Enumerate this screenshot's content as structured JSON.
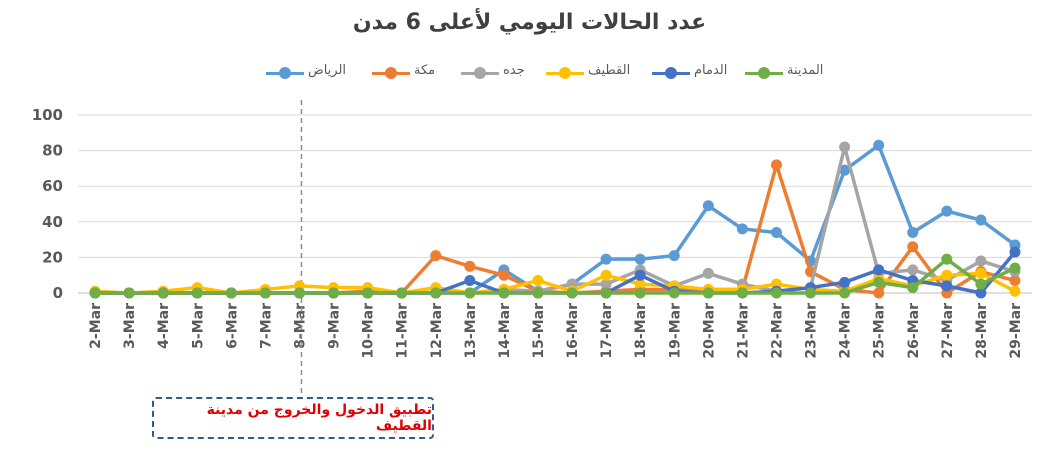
{
  "chart_data": {
    "type": "line",
    "title": "عدد الحالات اليومي لأعلى 6 مدن",
    "x": [
      "2-Mar",
      "3-Mar",
      "4-Mar",
      "5-Mar",
      "6-Mar",
      "7-Mar",
      "8-Mar",
      "9-Mar",
      "10-Mar",
      "11-Mar",
      "12-Mar",
      "13-Mar",
      "14-Mar",
      "15-Mar",
      "16-Mar",
      "17-Mar",
      "18-Mar",
      "19-Mar",
      "20-Mar",
      "21-Mar",
      "22-Mar",
      "23-Mar",
      "24-Mar",
      "25-Mar",
      "26-Mar",
      "27-Mar",
      "28-Mar",
      "29-Mar"
    ],
    "ylim": [
      0,
      100
    ],
    "yticks": [
      0,
      20,
      40,
      60,
      80,
      100
    ],
    "grid": true,
    "legend_position": "top",
    "series": [
      {
        "name": "الرياض",
        "color": "#5b9bd5",
        "values": [
          0,
          0,
          0,
          0,
          0,
          0,
          0,
          0,
          0,
          0,
          0,
          0,
          13,
          1,
          5,
          19,
          19,
          21,
          49,
          36,
          34,
          18,
          69,
          83,
          34,
          46,
          41,
          27
        ]
      },
      {
        "name": "مكة",
        "color": "#ed7d31",
        "values": [
          0,
          0,
          0,
          0,
          0,
          0,
          0,
          0,
          1,
          0,
          21,
          15,
          10,
          1,
          0,
          1,
          2,
          2,
          2,
          2,
          72,
          12,
          2,
          0,
          26,
          0,
          12,
          7
        ]
      },
      {
        "name": "جده",
        "color": "#a5a5a5",
        "values": [
          0,
          0,
          0,
          0,
          0,
          0,
          0,
          0,
          0,
          0,
          0,
          0,
          2,
          1,
          5,
          5,
          13,
          4,
          11,
          5,
          1,
          3,
          82,
          11,
          13,
          7,
          18,
          12
        ]
      },
      {
        "name": "القطيف",
        "color": "#ffc000",
        "values": [
          1,
          0,
          1,
          3,
          0,
          2,
          4,
          3,
          3,
          0,
          3,
          0,
          2,
          7,
          1,
          10,
          5,
          4,
          2,
          2,
          5,
          2,
          1,
          8,
          4,
          10,
          11,
          1
        ]
      },
      {
        "name": "الدمام",
        "color": "#4472c4",
        "values": [
          0,
          0,
          0,
          0,
          0,
          0,
          0,
          0,
          0,
          0,
          0,
          7,
          0,
          0,
          0,
          0,
          10,
          1,
          0,
          0,
          1,
          3,
          6,
          13,
          7,
          4,
          0,
          23
        ]
      },
      {
        "name": "المدينة",
        "color": "#70ad47",
        "values": [
          0,
          0,
          0,
          0,
          0,
          0,
          0,
          0,
          0,
          0,
          0,
          0,
          0,
          0,
          0,
          0,
          0,
          0,
          0,
          0,
          0,
          0,
          0,
          6,
          3,
          19,
          5,
          14
        ]
      }
    ],
    "annotation": {
      "text": "تطبيق الدخول والخروج من مدينة القطيف",
      "at_x": "8-Mar",
      "color": "#e00000"
    },
    "grid_color": "#d9d9d9"
  }
}
